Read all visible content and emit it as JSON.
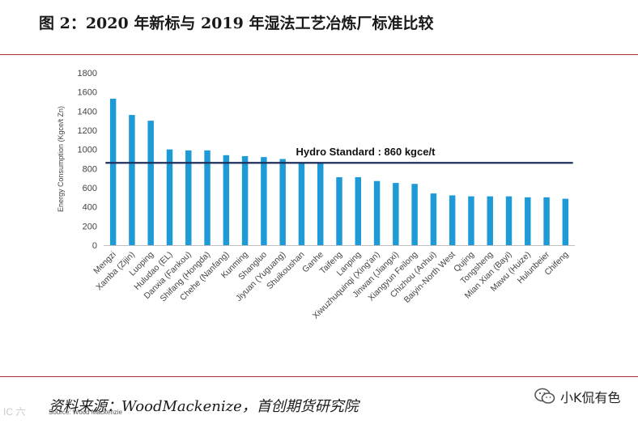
{
  "figure_title": "图 2：2020 年新标与 2019 年湿法工艺冶炼厂标准比较",
  "source_note": "Source: Wood Mackenzie",
  "footer_source": "资料来源：WoodMackenize，首创期货研究院",
  "watermark_left": "IC 六",
  "brand_name": "小K侃有色",
  "colors": {
    "bar": "#1e9ad6",
    "reference_line": "#1f2f5c",
    "axis_text": "#444444",
    "rule": "#b03030"
  },
  "chart_data": {
    "type": "bar",
    "title": "",
    "xlabel": "",
    "ylabel": "Energy Consumption (Kgce/t Zn)",
    "ylim": [
      0,
      1800
    ],
    "yticks": [
      0,
      200,
      400,
      600,
      800,
      1000,
      1200,
      1400,
      1600,
      1800
    ],
    "grid": false,
    "categories": [
      "Mengzi",
      "Xamba (Zijin)",
      "Luoping",
      "Huludao (EL)",
      "Danxia (Fankou)",
      "Shifang (Hongda)",
      "Chehe (Nanfang)",
      "Kunming",
      "Shangluo",
      "Jiyuan (Yuguang)",
      "Shuikoushan",
      "Ganhe",
      "Taifeng",
      "Lanping",
      "Xiwuzhuquinqi (Xing'an)",
      "Jinwan (Jiangxi)",
      "Xiangyun Feilong",
      "Chizhou (Anhui)",
      "Baiyin-North West",
      "Qujing",
      "Tongsheng",
      "Mian Xian (Bayi)",
      "Mawu (Huize)",
      "Hulunbeier",
      "Chifeng"
    ],
    "values": [
      1530,
      1360,
      1300,
      1000,
      990,
      990,
      940,
      930,
      920,
      900,
      865,
      860,
      710,
      710,
      670,
      650,
      640,
      540,
      520,
      510,
      510,
      510,
      500,
      500,
      485
    ],
    "reference_line": {
      "value": 860,
      "label": "Hydro Standard : 860 kgce/t"
    }
  }
}
